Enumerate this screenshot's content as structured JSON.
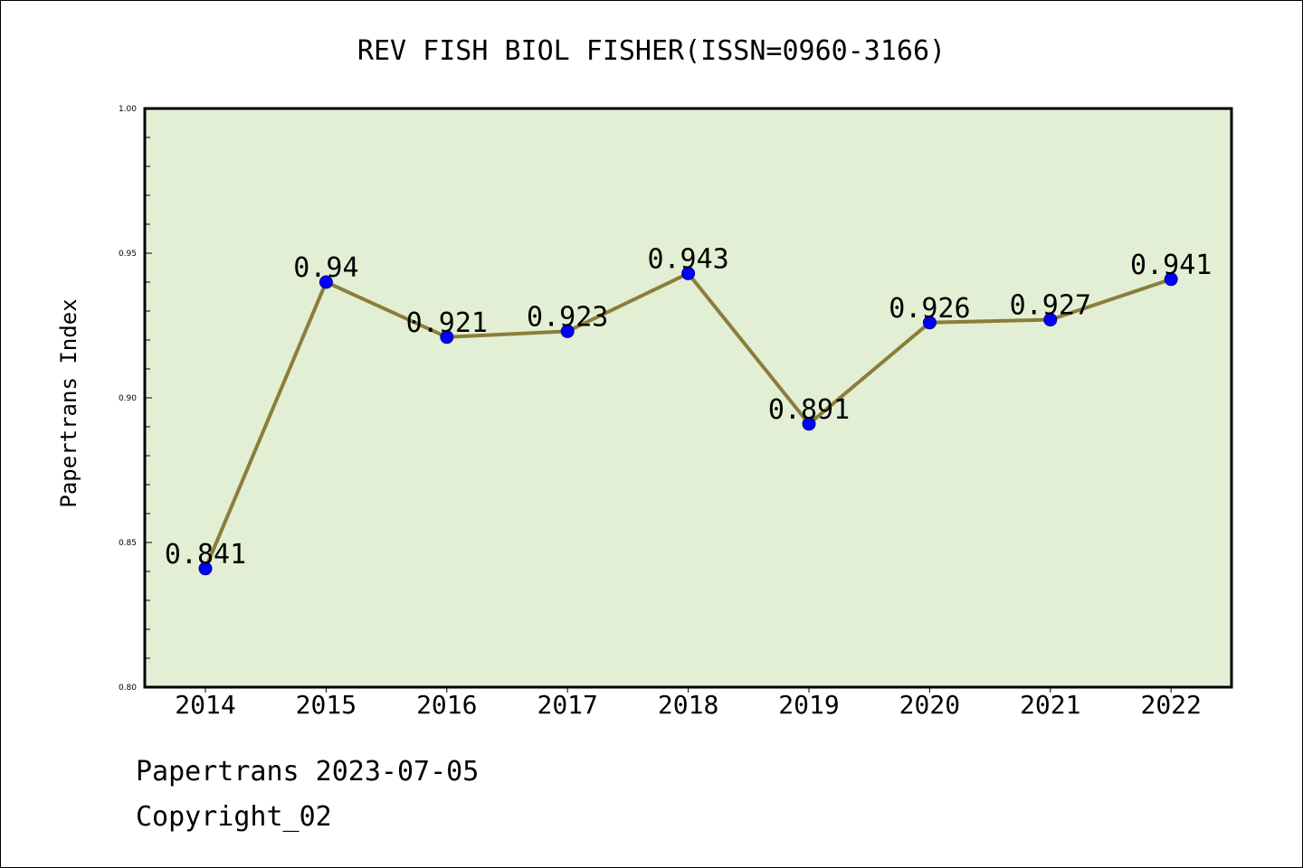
{
  "chart_data": {
    "type": "line",
    "title": "REV FISH BIOL FISHER(ISSN=0960-3166)",
    "xlabel": "",
    "ylabel": "Papertrans Index",
    "categories": [
      "2014",
      "2015",
      "2016",
      "2017",
      "2018",
      "2019",
      "2020",
      "2021",
      "2022"
    ],
    "series": [
      {
        "values": [
          0.841,
          0.94,
          0.921,
          0.923,
          0.943,
          0.891,
          0.926,
          0.927,
          0.941
        ],
        "labels": [
          "0.841",
          "0.94",
          "0.921",
          "0.923",
          "0.943",
          "0.891",
          "0.926",
          "0.927",
          "0.941"
        ]
      }
    ],
    "ylim": [
      0.8,
      1.0
    ],
    "yticks": [
      "0.80",
      "0.85",
      "0.90",
      "0.95",
      "1.00"
    ],
    "grid": false,
    "legend": "none",
    "colors": {
      "plot_background": "#e2efd4",
      "line": "#8b7d3a",
      "marker": "#0000ff",
      "axes": "#000000"
    }
  },
  "footer": {
    "date_line": "Papertrans 2023-07-05",
    "copyright": "Copyright_02"
  }
}
